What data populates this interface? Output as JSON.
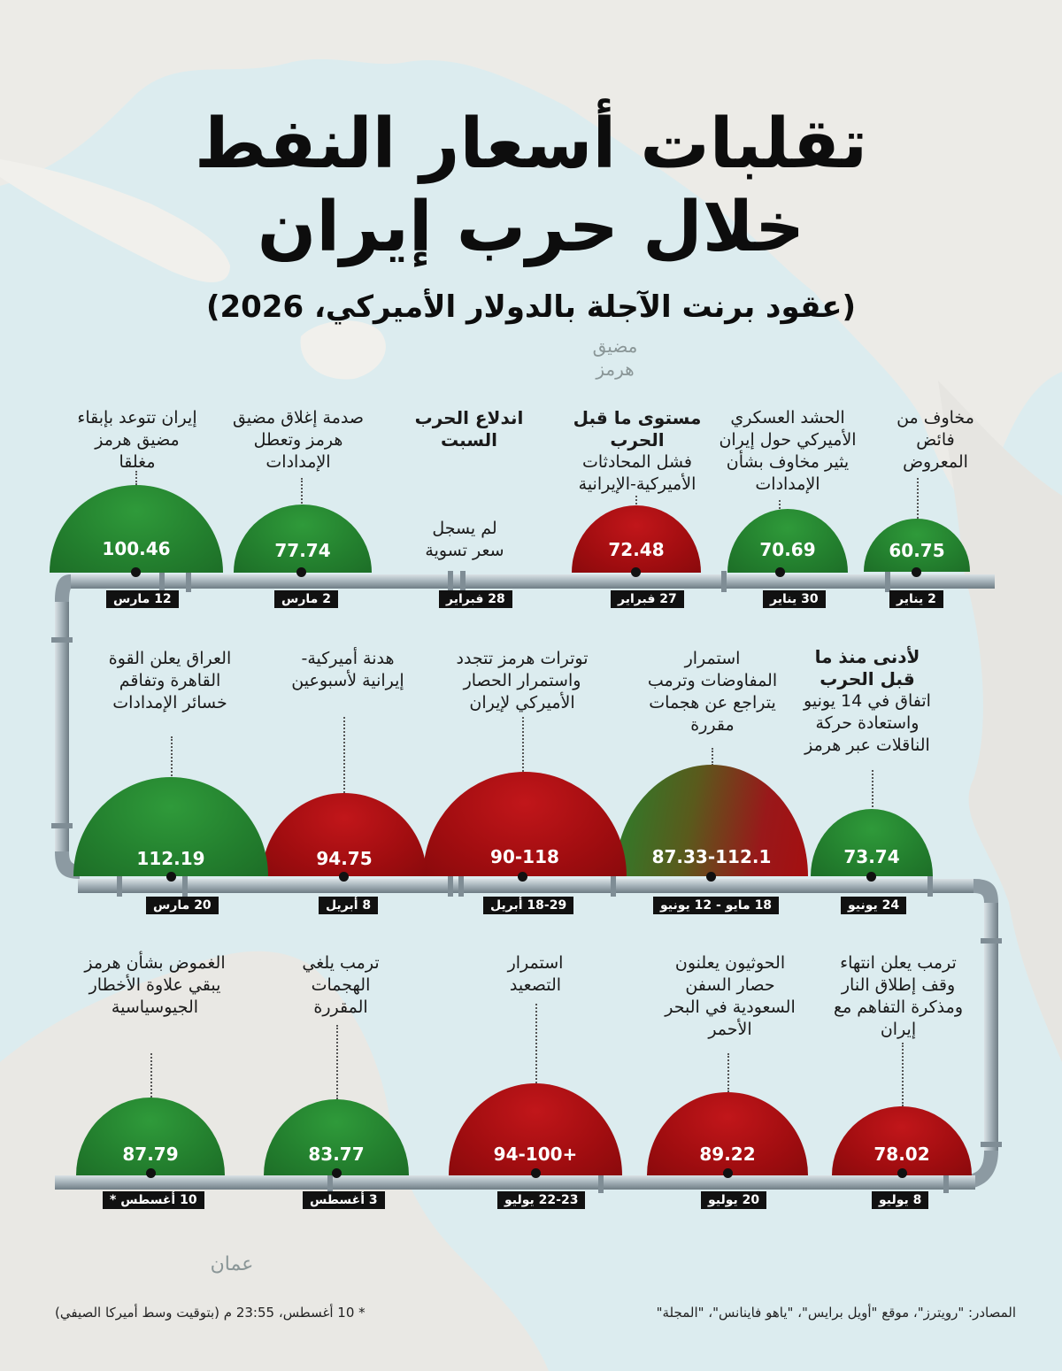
{
  "title": {
    "line1": "تقلبات أسعار النفط",
    "line2": "خلال حرب إيران",
    "subtitle": "(عقود برنت الآجلة بالدولار الأميركي، 2026)"
  },
  "map_labels": {
    "strait": "مضيق هرمز",
    "oman": "عمان"
  },
  "colors": {
    "green": "#237f2e",
    "red": "#a10d10",
    "pipe": "#9eacb4",
    "label_bg": "#111111"
  },
  "rows": [
    {
      "events": [
        {
          "date": "2 يناير",
          "value": "60.75",
          "color": "green",
          "label": "مخاوف من فائض المعروض",
          "heading": ""
        },
        {
          "date": "30 يناير",
          "value": "70.69",
          "color": "green",
          "label": "الحشد العسكري الأميركي حول إيران يثير مخاوف بشأن الإمدادات",
          "heading": ""
        },
        {
          "date": "27 فبراير",
          "value": "72.48",
          "color": "red",
          "label": "فشل المحادثات الأميركية-الإيرانية",
          "heading": "مستوى ما قبل الحرب"
        },
        {
          "date": "28 فبراير",
          "value": "",
          "color": "none",
          "label": "لم يسجل سعر تسوية",
          "heading": "اندلاع الحرب السبت"
        },
        {
          "date": "2 مارس",
          "value": "77.74",
          "color": "green",
          "label": "صدمة إغلاق مضيق هرمز وتعطل الإمدادات",
          "heading": ""
        },
        {
          "date": "12 مارس",
          "value": "100.46",
          "color": "green",
          "label": "إيران تتوعد بإبقاء مضيق هرمز مغلقا",
          "heading": ""
        }
      ]
    },
    {
      "events": [
        {
          "date": "24 يونيو",
          "value": "73.74",
          "color": "green",
          "label": "اتفاق في 14 يونيو واستعادة حركة الناقلات عبر هرمز",
          "heading": "لأدنى منذ ما قبل الحرب"
        },
        {
          "date": "18 مايو - 12 يونيو",
          "value": "87.33-112.1",
          "color": "mix",
          "label": "استمرار المفاوضات وترمب يتراجع عن هجمات مقررة",
          "heading": ""
        },
        {
          "date": "18-29 أبريل",
          "value": "90-118",
          "color": "red",
          "label": "توترات هرمز تتجدد واستمرار الحصار الأميركي لإيران",
          "heading": ""
        },
        {
          "date": "8 أبريل",
          "value": "94.75",
          "color": "red",
          "label": "هدنة أميركية-إيرانية لأسبوعين",
          "heading": ""
        },
        {
          "date": "20 مارس",
          "value": "112.19",
          "color": "green",
          "label": "العراق يعلن القوة القاهرة وتفاقم خسائر الإمدادات",
          "heading": ""
        }
      ]
    },
    {
      "events": [
        {
          "date": "8 يوليو",
          "value": "78.02",
          "color": "red",
          "label": "ترمب يعلن انتهاء وقف إطلاق النار ومذكرة التفاهم مع إيران",
          "heading": ""
        },
        {
          "date": "20 يوليو",
          "value": "89.22",
          "color": "red",
          "label": "الحوثيون يعلنون حصار السفن السعودية في البحر الأحمر",
          "heading": ""
        },
        {
          "date": "22-23 يوليو",
          "value": "94-100+",
          "color": "red",
          "label": "استمرار التصعيد",
          "heading": ""
        },
        {
          "date": "3 أغسطس",
          "value": "83.77",
          "color": "green",
          "label": "ترمب يلغي الهجمات المقررة",
          "heading": ""
        },
        {
          "date": "10 أغسطس *",
          "value": "87.79",
          "color": "green",
          "label": "الغموض بشأن هرمز يبقي علاوة الأخطار الجيوسياسية",
          "heading": ""
        }
      ]
    }
  ],
  "footer": {
    "sources": "المصادر: \"رويترز\"، موقع \"أويل برايس\"، \"ياهو فاينانس\"، \"المجلة\"",
    "note": "* 10 أغسطس، 23:55 م (بتوقيت وسط أميركا الصيفي)"
  }
}
